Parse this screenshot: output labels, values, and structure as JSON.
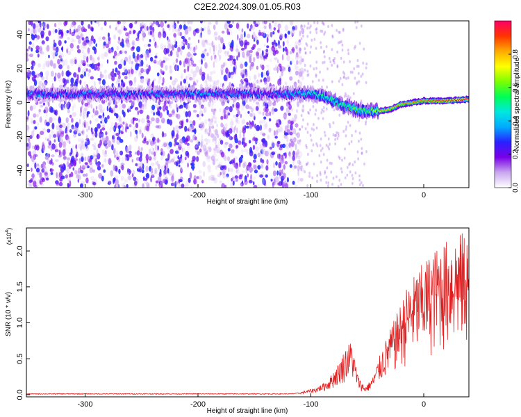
{
  "title": "C2E2.2024.309.01.05.R03",
  "chart_data": [
    {
      "type": "heatmap",
      "xlabel": "Height of straight line (km)",
      "ylabel": "Frequency (Hz)",
      "xlim": [
        -352,
        40
      ],
      "ylim": [
        -50,
        48
      ],
      "xticks": [
        -300,
        -200,
        -100,
        0
      ],
      "yticks": [
        -40,
        -20,
        0,
        20,
        40
      ],
      "ridge": [
        {
          "x": -350,
          "y": 5
        },
        {
          "x": -300,
          "y": 5
        },
        {
          "x": -200,
          "y": 5
        },
        {
          "x": -150,
          "y": 5
        },
        {
          "x": -120,
          "y": 5
        },
        {
          "x": -100,
          "y": 5
        },
        {
          "x": -90,
          "y": 4
        },
        {
          "x": -80,
          "y": 1
        },
        {
          "x": -70,
          "y": -2
        },
        {
          "x": -60,
          "y": -4
        },
        {
          "x": -50,
          "y": -5
        },
        {
          "x": -40,
          "y": -5
        },
        {
          "x": -30,
          "y": -4
        },
        {
          "x": -20,
          "y": -1
        },
        {
          "x": -10,
          "y": 0
        },
        {
          "x": 0,
          "y": 1
        },
        {
          "x": 20,
          "y": 1
        },
        {
          "x": 40,
          "y": 2
        }
      ],
      "colorbar": {
        "label": "Normalized spectral amplitude",
        "ticks": [
          "0.0",
          "0.2",
          "0.4",
          "0.6",
          "0.8"
        ],
        "range": [
          0,
          1
        ],
        "colors": [
          "#ffffff",
          "#c9a7ef",
          "#7a00e8",
          "#2a20ff",
          "#00aaff",
          "#00e8e0",
          "#00ff55",
          "#7cff00",
          "#ffff00",
          "#ffaa00",
          "#ff3300",
          "#ff0066"
        ]
      }
    },
    {
      "type": "line",
      "xlabel": "Height of straight line (km)",
      "ylabel": "SNR (10 * v/v)",
      "scale_label": "(x10",
      "scale_exp": "4",
      "scale_close": ")",
      "xlim": [
        -352,
        40
      ],
      "ylim": [
        -0.03,
        2.32
      ],
      "xticks": [
        -300,
        -200,
        -100,
        0
      ],
      "yticks": [
        "0.0",
        "0.5",
        "1.0",
        "1.5",
        "2.0"
      ],
      "line_color": "#e02020",
      "envelope": [
        {
          "x": -352,
          "y": 0.0
        },
        {
          "x": -130,
          "y": 0.0
        },
        {
          "x": -110,
          "y": 0.03
        },
        {
          "x": -95,
          "y": 0.1
        },
        {
          "x": -85,
          "y": 0.2
        },
        {
          "x": -75,
          "y": 0.45
        },
        {
          "x": -68,
          "y": 0.7
        },
        {
          "x": -64,
          "y": 0.75
        },
        {
          "x": -58,
          "y": 0.25
        },
        {
          "x": -52,
          "y": 0.1
        },
        {
          "x": -45,
          "y": 0.25
        },
        {
          "x": -38,
          "y": 0.6
        },
        {
          "x": -30,
          "y": 0.9
        },
        {
          "x": -22,
          "y": 1.2
        },
        {
          "x": -15,
          "y": 1.5
        },
        {
          "x": -5,
          "y": 1.75
        },
        {
          "x": 5,
          "y": 1.95
        },
        {
          "x": 15,
          "y": 2.1
        },
        {
          "x": 25,
          "y": 2.2
        },
        {
          "x": 40,
          "y": 2.3
        }
      ]
    }
  ]
}
